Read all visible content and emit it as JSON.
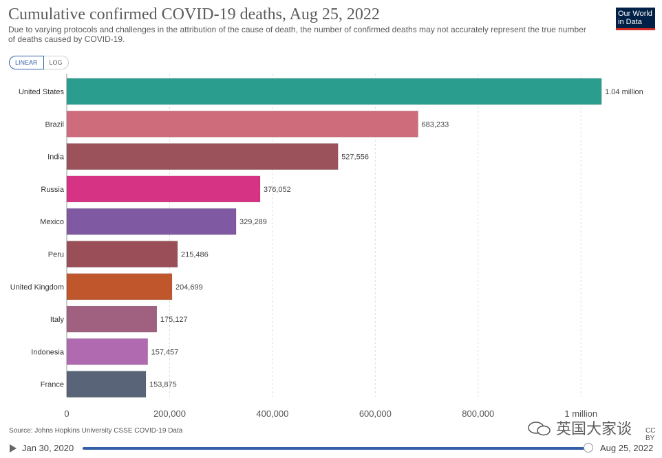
{
  "header": {
    "title": "Cumulative confirmed COVID-19 deaths, Aug 25, 2022",
    "subtitle": "Due to varying protocols and challenges in the attribution of the cause of death, the number of confirmed deaths may not accurately represent the true number of deaths caused by COVID-19.",
    "logo_text": "Our World in Data"
  },
  "scale_toggle": {
    "linear_label": "LINEAR",
    "log_label": "LOG",
    "selected": "LINEAR"
  },
  "chart_data": {
    "type": "bar",
    "orientation": "horizontal",
    "categories": [
      "United States",
      "Brazil",
      "India",
      "Russia",
      "Mexico",
      "Peru",
      "United Kingdom",
      "Italy",
      "Indonesia",
      "France"
    ],
    "values": [
      1040000,
      683233,
      527556,
      376052,
      329289,
      215486,
      204699,
      175127,
      157457,
      153875
    ],
    "value_labels": [
      "1.04 million",
      "683,233",
      "527,556",
      "376,052",
      "329,289",
      "215,486",
      "204,699",
      "175,127",
      "157,457",
      "153,875"
    ],
    "colors": [
      "#2a9d8f",
      "#cf6c7c",
      "#9c525b",
      "#d63384",
      "#7f5aa2",
      "#9a4e58",
      "#c0562c",
      "#a06080",
      "#b06ab0",
      "#5a6478"
    ],
    "xlim": [
      0,
      1080000
    ],
    "ticks": [
      0,
      200000,
      400000,
      600000,
      800000,
      1000000
    ],
    "tick_labels": [
      "0",
      "200,000",
      "400,000",
      "600,000",
      "800,000",
      "1 million"
    ],
    "grid": true
  },
  "footer": {
    "source": "Source: Johns Hopkins University CSSE COVID-19 Data",
    "license": "CC BY",
    "timeline_start": "Jan 30, 2020",
    "timeline_end": "Aug 25, 2022",
    "watermark": "英国大家谈"
  }
}
